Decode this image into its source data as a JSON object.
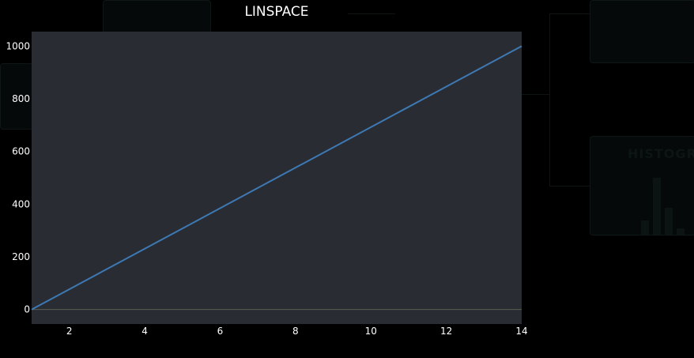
{
  "background": {
    "node_title": "HISTOGRA"
  },
  "chart_data": {
    "type": "line",
    "title": "LINSPACE",
    "xlabel": "",
    "ylabel": "",
    "xlim": [
      1,
      14
    ],
    "ylim": [
      -55,
      1055
    ],
    "x_ticks": [
      2,
      4,
      6,
      8,
      10,
      12,
      14
    ],
    "y_ticks": [
      0,
      200,
      400,
      600,
      800,
      1000
    ],
    "grid": false,
    "legend": "none",
    "series": [
      {
        "x": [
          1,
          14
        ],
        "y": [
          0,
          1000
        ],
        "color": "#3d79b3"
      }
    ],
    "colors": {
      "plot_bg": "#2a2c34",
      "zero_line": "#5a5e50",
      "page_bg": "#000000"
    }
  }
}
